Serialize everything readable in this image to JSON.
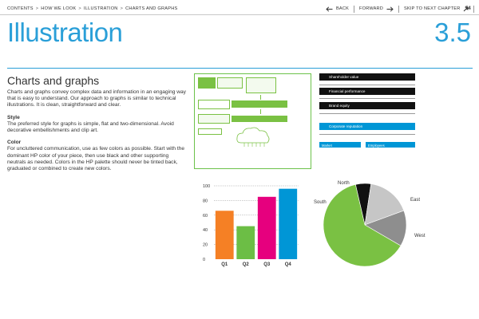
{
  "nav": {
    "breadcrumb": [
      "CONTENTS",
      "HOW WE LOOK",
      "ILLUSTRATION",
      "CHARTS AND GRAPHS"
    ],
    "back_label": "BACK",
    "forward_label": "FORWARD",
    "skip_label": "SKIP TO NEXT CHAPTER",
    "page_number": "54"
  },
  "page": {
    "title": "Illustration",
    "section_number": "3.5",
    "accent_color": "#2a9fd8"
  },
  "content": {
    "heading": "Charts and graphs",
    "intro": "Charts and graphs convey complex data and information in an engaging way that is easy to understand. Our approach to graphs is similar to technical illustrations. It is clean, straightforward and clear.",
    "style_heading": "Style",
    "style_text": "The preferred style for graphs is simple, flat and two-dimensional. Avoid decorative embellishments and clip art.",
    "color_heading": "Color",
    "color_text": "For uncluttered communication, use as few colors as possible. Start with the dominant HP color of your piece, then use black and other supporting neutrals as needed. Colors in the HP palette should never be tinted back, graduated or combined to create new colors."
  },
  "org_chart": {
    "items": [
      {
        "label": "Shareholder value",
        "color": "black"
      },
      {
        "label": "Financial performance",
        "color": "black"
      },
      {
        "label": "Brand equity",
        "color": "black"
      },
      {
        "label": "Corporate reputation",
        "color": "blue"
      }
    ],
    "tags": [
      "Market",
      "Employees"
    ]
  },
  "chart_data": [
    {
      "type": "bar",
      "categories": [
        "Q1",
        "Q2",
        "Q3",
        "Q4"
      ],
      "values": [
        66,
        45,
        85,
        96
      ],
      "colors": [
        "#f58025",
        "#6cbe45",
        "#e6007e",
        "#0096d6"
      ],
      "ylim": [
        0,
        100
      ],
      "yticks": [
        0,
        20,
        40,
        60,
        80,
        100
      ],
      "grid": true
    },
    {
      "type": "pie",
      "slices": [
        {
          "label": "North",
          "value": 6,
          "color": "#111111"
        },
        {
          "label": "East",
          "value": 17,
          "color": "#c6c6c6"
        },
        {
          "label": "West",
          "value": 14,
          "color": "#8e8e8e"
        },
        {
          "label": "South",
          "value": 63,
          "color": "#7ac143"
        }
      ]
    }
  ]
}
